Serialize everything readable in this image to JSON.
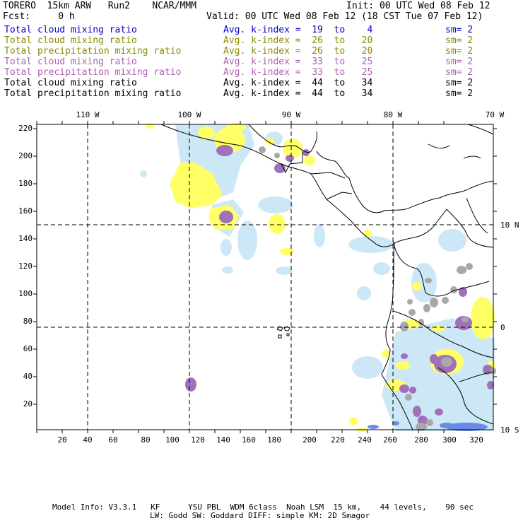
{
  "header": {
    "model": "TORERO  15km ARW   Run2    NCAR/MMM",
    "init": "Init: 00 UTC Wed 08 Feb 12",
    "fcst": "Fcst:     0 h",
    "valid": "Valid: 00 UTC Wed 08 Feb 12 (18 CST Tue 07 Feb 12)"
  },
  "legend": [
    {
      "name": "Total cloud mixing ratio",
      "kindex": "Avg. k-index =  19  to    4",
      "sm": "sm= 2",
      "color": "#0000cc"
    },
    {
      "name": "Total cloud mixing ratio",
      "kindex": "Avg. k-index =  26  to   20",
      "sm": "sm= 2",
      "color": "#8a8a00"
    },
    {
      "name": "Total precipitation mixing ratio",
      "kindex": "Avg. k-index =  26  to   20",
      "sm": "sm= 2",
      "color": "#8a8a00"
    },
    {
      "name": "Total cloud mixing ratio",
      "kindex": "Avg. k-index =  33  to   25",
      "sm": "sm= 2",
      "color": "#b060b0"
    },
    {
      "name": "Total precipitation mixing ratio",
      "kindex": "Avg. k-index =  33  to   25",
      "sm": "sm= 2",
      "color": "#b060b0"
    },
    {
      "name": "Total cloud mixing ratio",
      "kindex": "Avg. k-index =  44  to   34",
      "sm": "sm= 2",
      "color": "#000000"
    },
    {
      "name": "Total precipitation mixing ratio",
      "kindex": "Avg. k-index =  44  to   34",
      "sm": "sm= 2",
      "color": "#000000"
    }
  ],
  "map": {
    "lon_labels": [
      "110 W",
      "100 W",
      "90 W",
      "80 W",
      "70 W"
    ],
    "lat_labels": [
      "10 N",
      "0",
      "10 S"
    ],
    "y_ticks": [
      "220",
      "200",
      "180",
      "160",
      "140",
      "120",
      "100",
      "80",
      "60",
      "40",
      "20"
    ],
    "x_ticks": [
      "20",
      "40",
      "60",
      "80",
      "100",
      "120",
      "140",
      "160",
      "180",
      "200",
      "220",
      "240",
      "260",
      "280",
      "300",
      "320"
    ],
    "colors": {
      "light": "#cce8f6",
      "yellow": "#ffff66",
      "purple": "#a070b8",
      "gray": "#a8a8a8",
      "blue": "#6a8ae8"
    }
  },
  "footer": {
    "line1": "Model Info: V3.3.1   KF      YSU PBL  WDM 6class  Noah LSM  15 km,    44 levels,    90 sec",
    "line2": "LW: Godd SW: Goddard DIFF: simple KM: 2D Smagor"
  }
}
